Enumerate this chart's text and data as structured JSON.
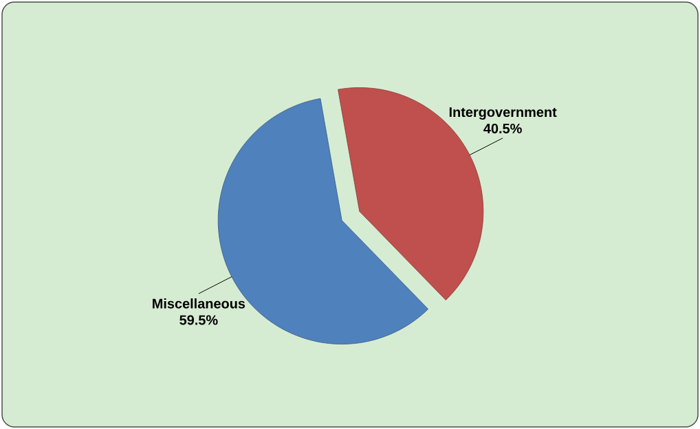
{
  "chart_data": {
    "type": "pie",
    "categories": [
      "Intergovernment",
      "Miscellaneous"
    ],
    "values": [
      40.5,
      59.5
    ],
    "colors": [
      "#c0504d",
      "#4f81bd"
    ],
    "value_labels": [
      "40.5%",
      "59.5%"
    ]
  }
}
